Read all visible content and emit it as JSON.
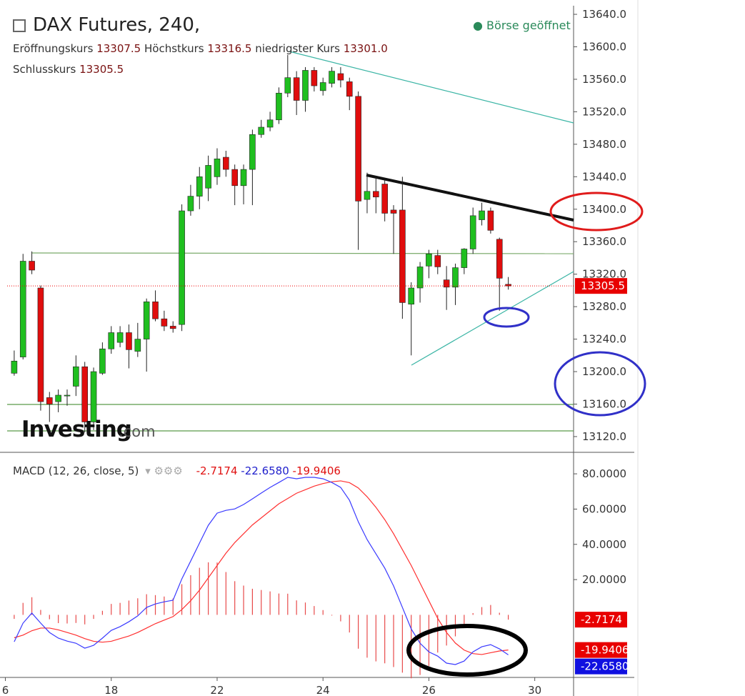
{
  "chart_data": [
    {
      "type": "candlestick",
      "title": "DAX Futures, 240,",
      "status": "Börse geöffnet",
      "open_label": "Eröffnungskurs",
      "open_value": "13307.5",
      "high_label": "Höchstkurs",
      "high_value": "13316.5",
      "low_label": "niedrigster Kurs",
      "low_value": "13301.0",
      "close_label": "Schlusskurs",
      "close_value": "13305.5",
      "watermark": "Investing",
      "watermark_suffix": ".com",
      "last_price_label": "13305.5",
      "up_color": "#1fbf1f",
      "down_color": "#e00d0d",
      "x": [
        0,
        1,
        2,
        3,
        4,
        5,
        6,
        7,
        8,
        9,
        10,
        11,
        12,
        13,
        14,
        15,
        16,
        17,
        18,
        19,
        20,
        21,
        22,
        23,
        24,
        25,
        26,
        27,
        28,
        29,
        30,
        31,
        32,
        33,
        34,
        35,
        36,
        37,
        38,
        39,
        40,
        41,
        42,
        43,
        44,
        45,
        46,
        47,
        48,
        49,
        50,
        51,
        52,
        53,
        54,
        55,
        56
      ],
      "open": [
        13198,
        13218,
        13336,
        13303,
        13168,
        13163,
        13170,
        13182,
        13206,
        13138,
        13198,
        13228,
        13236,
        13248,
        13225,
        13240,
        13286,
        13265,
        13256,
        13258,
        13398,
        13416,
        13426,
        13440,
        13464,
        13449,
        13429,
        13449,
        13492,
        13501,
        13510,
        13543,
        13562,
        13534,
        13571,
        13546,
        13555,
        13567,
        13557,
        13539,
        13412,
        13422,
        13431,
        13399,
        13399,
        13283,
        13303,
        13330,
        13343,
        13313,
        13304,
        13328,
        13351,
        13387,
        13398,
        13363,
        13307.5
      ],
      "high": [
        13226,
        13345,
        13348,
        13306,
        13175,
        13178,
        13178,
        13220,
        13212,
        13205,
        13236,
        13256,
        13256,
        13258,
        13260,
        13290,
        13300,
        13275,
        13262,
        13406,
        13430,
        13452,
        13466,
        13475,
        13472,
        13455,
        13455,
        13498,
        13510,
        13520,
        13550,
        13590,
        13570,
        13575,
        13575,
        13562,
        13575,
        13575,
        13562,
        13545,
        13445,
        13440,
        13436,
        13405,
        13440,
        13310,
        13335,
        13350,
        13350,
        13330,
        13333,
        13352,
        13402,
        13408,
        13402,
        13365,
        13316.5
      ],
      "low": [
        13195,
        13215,
        13320,
        13152,
        13138,
        13150,
        13158,
        13170,
        13125,
        13128,
        13196,
        13222,
        13230,
        13204,
        13218,
        13200,
        13262,
        13250,
        13248,
        13250,
        13392,
        13400,
        13410,
        13430,
        13440,
        13405,
        13406,
        13405,
        13488,
        13496,
        13505,
        13538,
        13516,
        13520,
        13545,
        13540,
        13550,
        13550,
        13522,
        13350,
        13395,
        13395,
        13385,
        13345,
        13265,
        13220,
        13285,
        13315,
        13320,
        13276,
        13282,
        13320,
        13345,
        13380,
        13370,
        13275,
        13301
      ],
      "close": [
        13213,
        13336,
        13325,
        13163,
        13160,
        13171,
        13171,
        13206,
        13138,
        13200,
        13228,
        13248,
        13248,
        13227,
        13240,
        13286,
        13265,
        13256,
        13253,
        13398,
        13416,
        13440,
        13454,
        13462,
        13449,
        13429,
        13449,
        13492,
        13501,
        13510,
        13543,
        13562,
        13534,
        13571,
        13552,
        13556,
        13570,
        13559,
        13539,
        13410,
        13422,
        13415,
        13395,
        13395,
        13285,
        13303,
        13329,
        13345,
        13329,
        13304,
        13328,
        13351,
        13392,
        13398,
        13374,
        13315,
        13305.5
      ],
      "last_price": 13305.5,
      "xlim": [
        -0.8,
        63.4
      ],
      "ylim": [
        13100.6,
        13650.6
      ],
      "yticks": [
        {
          "value": 13640,
          "label": "13640.0"
        },
        {
          "value": 13600,
          "label": "13600.0"
        },
        {
          "value": 13560,
          "label": "13560.0"
        },
        {
          "value": 13520,
          "label": "13520.0"
        },
        {
          "value": 13480,
          "label": "13480.0"
        },
        {
          "value": 13440,
          "label": "13440.0"
        },
        {
          "value": 13400,
          "label": "13400.0"
        },
        {
          "value": 13360,
          "label": "13360.0"
        },
        {
          "value": 13320,
          "label": "13320.0"
        },
        {
          "value": 13280,
          "label": "13280.0"
        },
        {
          "value": 13240,
          "label": "13240.0"
        },
        {
          "value": 13200,
          "label": "13200.0"
        },
        {
          "value": 13160,
          "label": "13160.0"
        },
        {
          "value": 13120,
          "label": "13120.0"
        }
      ]
    },
    {
      "type": "macd",
      "title": "MACD (12, 26, close, 5)",
      "histogram_label": "-2.7174",
      "macd_label": "-22.6580",
      "signal_label": "-19.9406",
      "histogram": {
        "color": "#e84a4a",
        "values": [
          -2.3,
          6.8,
          10,
          2.8,
          -2.5,
          -4.7,
          -4.9,
          -4.6,
          -5.4,
          -2.3,
          2.3,
          6.2,
          6.8,
          8.1,
          9.4,
          11.7,
          11.2,
          10.4,
          9.3,
          17.4,
          22.5,
          26.7,
          29.8,
          29.7,
          24.3,
          19.1,
          16.6,
          14.8,
          14.1,
          13.3,
          12.1,
          12,
          8.2,
          7,
          5,
          2.7,
          -0.4,
          -3.7,
          -10,
          -19.2,
          -24.3,
          -26.4,
          -27.5,
          -29.6,
          -32.8,
          -36,
          -34.1,
          -29,
          -21.4,
          -17.4,
          -12.2,
          -6.2,
          1,
          4.4,
          5.6,
          1.2,
          -2.7174
        ]
      },
      "macd": {
        "color": "#3a3aff",
        "values": [
          -15.3,
          -4.7,
          1,
          -4.7,
          -10,
          -13.2,
          -14.9,
          -16.1,
          -18.9,
          -17.3,
          -13.2,
          -8.8,
          -6.7,
          -3.9,
          -0.6,
          4.2,
          6.2,
          7.4,
          8.3,
          20.4,
          30.5,
          40.7,
          50.8,
          57.7,
          59.3,
          60.1,
          62.6,
          65.8,
          69.1,
          72.3,
          75.1,
          78,
          77.2,
          78,
          78,
          77.2,
          75.1,
          72.3,
          65,
          52.8,
          42.7,
          34.6,
          26.5,
          16.4,
          4.2,
          -8,
          -16.1,
          -21,
          -23.4,
          -27.4,
          -28.2,
          -26.2,
          -21,
          -18.1,
          -16.9,
          -19.3,
          -22.658
        ]
      },
      "signal": {
        "color": "#ff3030",
        "values": [
          -13,
          -11.5,
          -9,
          -7.5,
          -7.5,
          -8.5,
          -10,
          -11.5,
          -13.5,
          -15,
          -15.5,
          -15,
          -13.5,
          -12,
          -10,
          -7.5,
          -5,
          -3,
          -1,
          3,
          8,
          14,
          21,
          28,
          35,
          41,
          46,
          51,
          55,
          59,
          63,
          66,
          69,
          71,
          73,
          74.5,
          75.5,
          76,
          75,
          72,
          67,
          61,
          54,
          46,
          37,
          28,
          18,
          8,
          -2,
          -10,
          -16,
          -20,
          -22,
          -22.5,
          -21.5,
          -20.5,
          -19.9406
        ]
      },
      "xlim": [
        -0.8,
        63.4
      ],
      "ylim": [
        -35.5,
        92.2
      ],
      "yticks": [
        {
          "value": 80,
          "label": "80.0000"
        },
        {
          "value": 60,
          "label": "60.0000"
        },
        {
          "value": 40,
          "label": "40.0000"
        },
        {
          "value": 20,
          "label": "20.0000"
        }
      ],
      "xticks": [
        {
          "value": -1,
          "label": "6"
        },
        {
          "value": 11,
          "label": "18"
        },
        {
          "value": 23,
          "label": "22"
        },
        {
          "value": 35,
          "label": "24"
        },
        {
          "value": 47,
          "label": "26"
        },
        {
          "value": 59,
          "label": "30"
        }
      ]
    }
  ]
}
